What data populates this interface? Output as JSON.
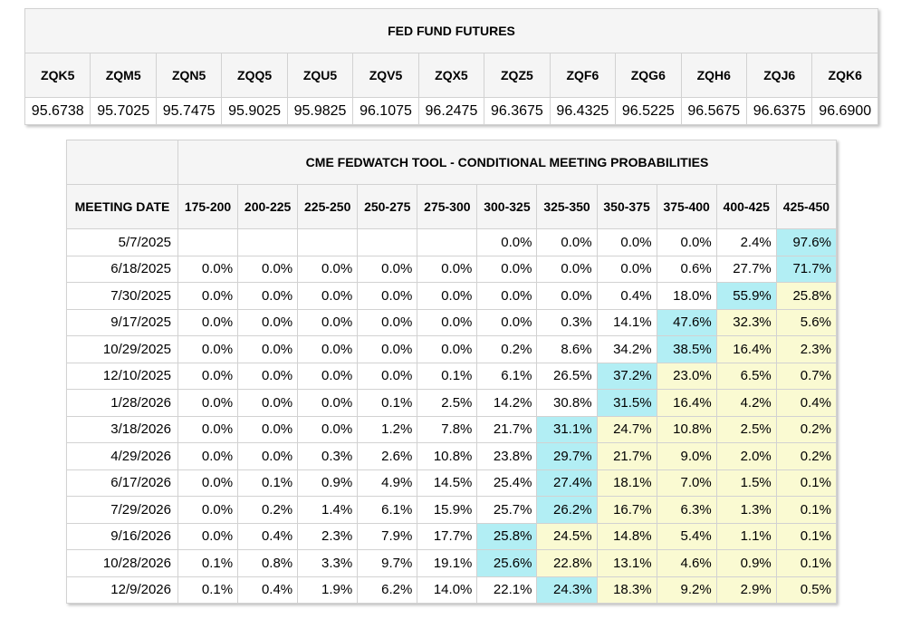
{
  "futures": {
    "title": "FED FUND FUTURES",
    "contracts": [
      "ZQK5",
      "ZQM5",
      "ZQN5",
      "ZQQ5",
      "ZQU5",
      "ZQV5",
      "ZQX5",
      "ZQZ5",
      "ZQF6",
      "ZQG6",
      "ZQH6",
      "ZQJ6",
      "ZQK6"
    ],
    "prices": [
      "95.6738",
      "95.7025",
      "95.7475",
      "95.9025",
      "95.9825",
      "96.1075",
      "96.2475",
      "96.3675",
      "96.4325",
      "96.5225",
      "96.5675",
      "96.6375",
      "96.6900"
    ]
  },
  "probabilities": {
    "title": "CME FEDWATCH TOOL - CONDITIONAL MEETING PROBABILITIES",
    "date_header": "MEETING DATE",
    "ranges": [
      "175-200",
      "200-225",
      "225-250",
      "250-275",
      "275-300",
      "300-325",
      "325-350",
      "350-375",
      "375-400",
      "400-425",
      "425-450"
    ],
    "highlight_color": "#b2eef4",
    "above_highlight_color": "#fafad2",
    "rows": [
      {
        "date": "5/7/2025",
        "values": [
          "",
          "",
          "",
          "",
          "",
          "0.0%",
          "0.0%",
          "0.0%",
          "0.0%",
          "2.4%",
          "97.6%"
        ],
        "max": 10
      },
      {
        "date": "6/18/2025",
        "values": [
          "0.0%",
          "0.0%",
          "0.0%",
          "0.0%",
          "0.0%",
          "0.0%",
          "0.0%",
          "0.0%",
          "0.6%",
          "27.7%",
          "71.7%"
        ],
        "max": 10
      },
      {
        "date": "7/30/2025",
        "values": [
          "0.0%",
          "0.0%",
          "0.0%",
          "0.0%",
          "0.0%",
          "0.0%",
          "0.0%",
          "0.4%",
          "18.0%",
          "55.9%",
          "25.8%"
        ],
        "max": 9
      },
      {
        "date": "9/17/2025",
        "values": [
          "0.0%",
          "0.0%",
          "0.0%",
          "0.0%",
          "0.0%",
          "0.0%",
          "0.3%",
          "14.1%",
          "47.6%",
          "32.3%",
          "5.6%"
        ],
        "max": 8
      },
      {
        "date": "10/29/2025",
        "values": [
          "0.0%",
          "0.0%",
          "0.0%",
          "0.0%",
          "0.0%",
          "0.2%",
          "8.6%",
          "34.2%",
          "38.5%",
          "16.4%",
          "2.3%"
        ],
        "max": 8
      },
      {
        "date": "12/10/2025",
        "values": [
          "0.0%",
          "0.0%",
          "0.0%",
          "0.0%",
          "0.1%",
          "6.1%",
          "26.5%",
          "37.2%",
          "23.0%",
          "6.5%",
          "0.7%"
        ],
        "max": 7
      },
      {
        "date": "1/28/2026",
        "values": [
          "0.0%",
          "0.0%",
          "0.0%",
          "0.1%",
          "2.5%",
          "14.2%",
          "30.8%",
          "31.5%",
          "16.4%",
          "4.2%",
          "0.4%"
        ],
        "max": 7
      },
      {
        "date": "3/18/2026",
        "values": [
          "0.0%",
          "0.0%",
          "0.0%",
          "1.2%",
          "7.8%",
          "21.7%",
          "31.1%",
          "24.7%",
          "10.8%",
          "2.5%",
          "0.2%"
        ],
        "max": 6
      },
      {
        "date": "4/29/2026",
        "values": [
          "0.0%",
          "0.0%",
          "0.3%",
          "2.6%",
          "10.8%",
          "23.8%",
          "29.7%",
          "21.7%",
          "9.0%",
          "2.0%",
          "0.2%"
        ],
        "max": 6
      },
      {
        "date": "6/17/2026",
        "values": [
          "0.0%",
          "0.1%",
          "0.9%",
          "4.9%",
          "14.5%",
          "25.4%",
          "27.4%",
          "18.1%",
          "7.0%",
          "1.5%",
          "0.1%"
        ],
        "max": 6
      },
      {
        "date": "7/29/2026",
        "values": [
          "0.0%",
          "0.2%",
          "1.4%",
          "6.1%",
          "15.9%",
          "25.7%",
          "26.2%",
          "16.7%",
          "6.3%",
          "1.3%",
          "0.1%"
        ],
        "max": 6
      },
      {
        "date": "9/16/2026",
        "values": [
          "0.0%",
          "0.4%",
          "2.3%",
          "7.9%",
          "17.7%",
          "25.8%",
          "24.5%",
          "14.8%",
          "5.4%",
          "1.1%",
          "0.1%"
        ],
        "max": 5
      },
      {
        "date": "10/28/2026",
        "values": [
          "0.1%",
          "0.8%",
          "3.3%",
          "9.7%",
          "19.1%",
          "25.6%",
          "22.8%",
          "13.1%",
          "4.6%",
          "0.9%",
          "0.1%"
        ],
        "max": 5
      },
      {
        "date": "12/9/2026",
        "values": [
          "0.1%",
          "0.4%",
          "1.9%",
          "6.2%",
          "14.0%",
          "22.1%",
          "24.3%",
          "18.3%",
          "9.2%",
          "2.9%",
          "0.5%"
        ],
        "max": 6
      }
    ]
  }
}
